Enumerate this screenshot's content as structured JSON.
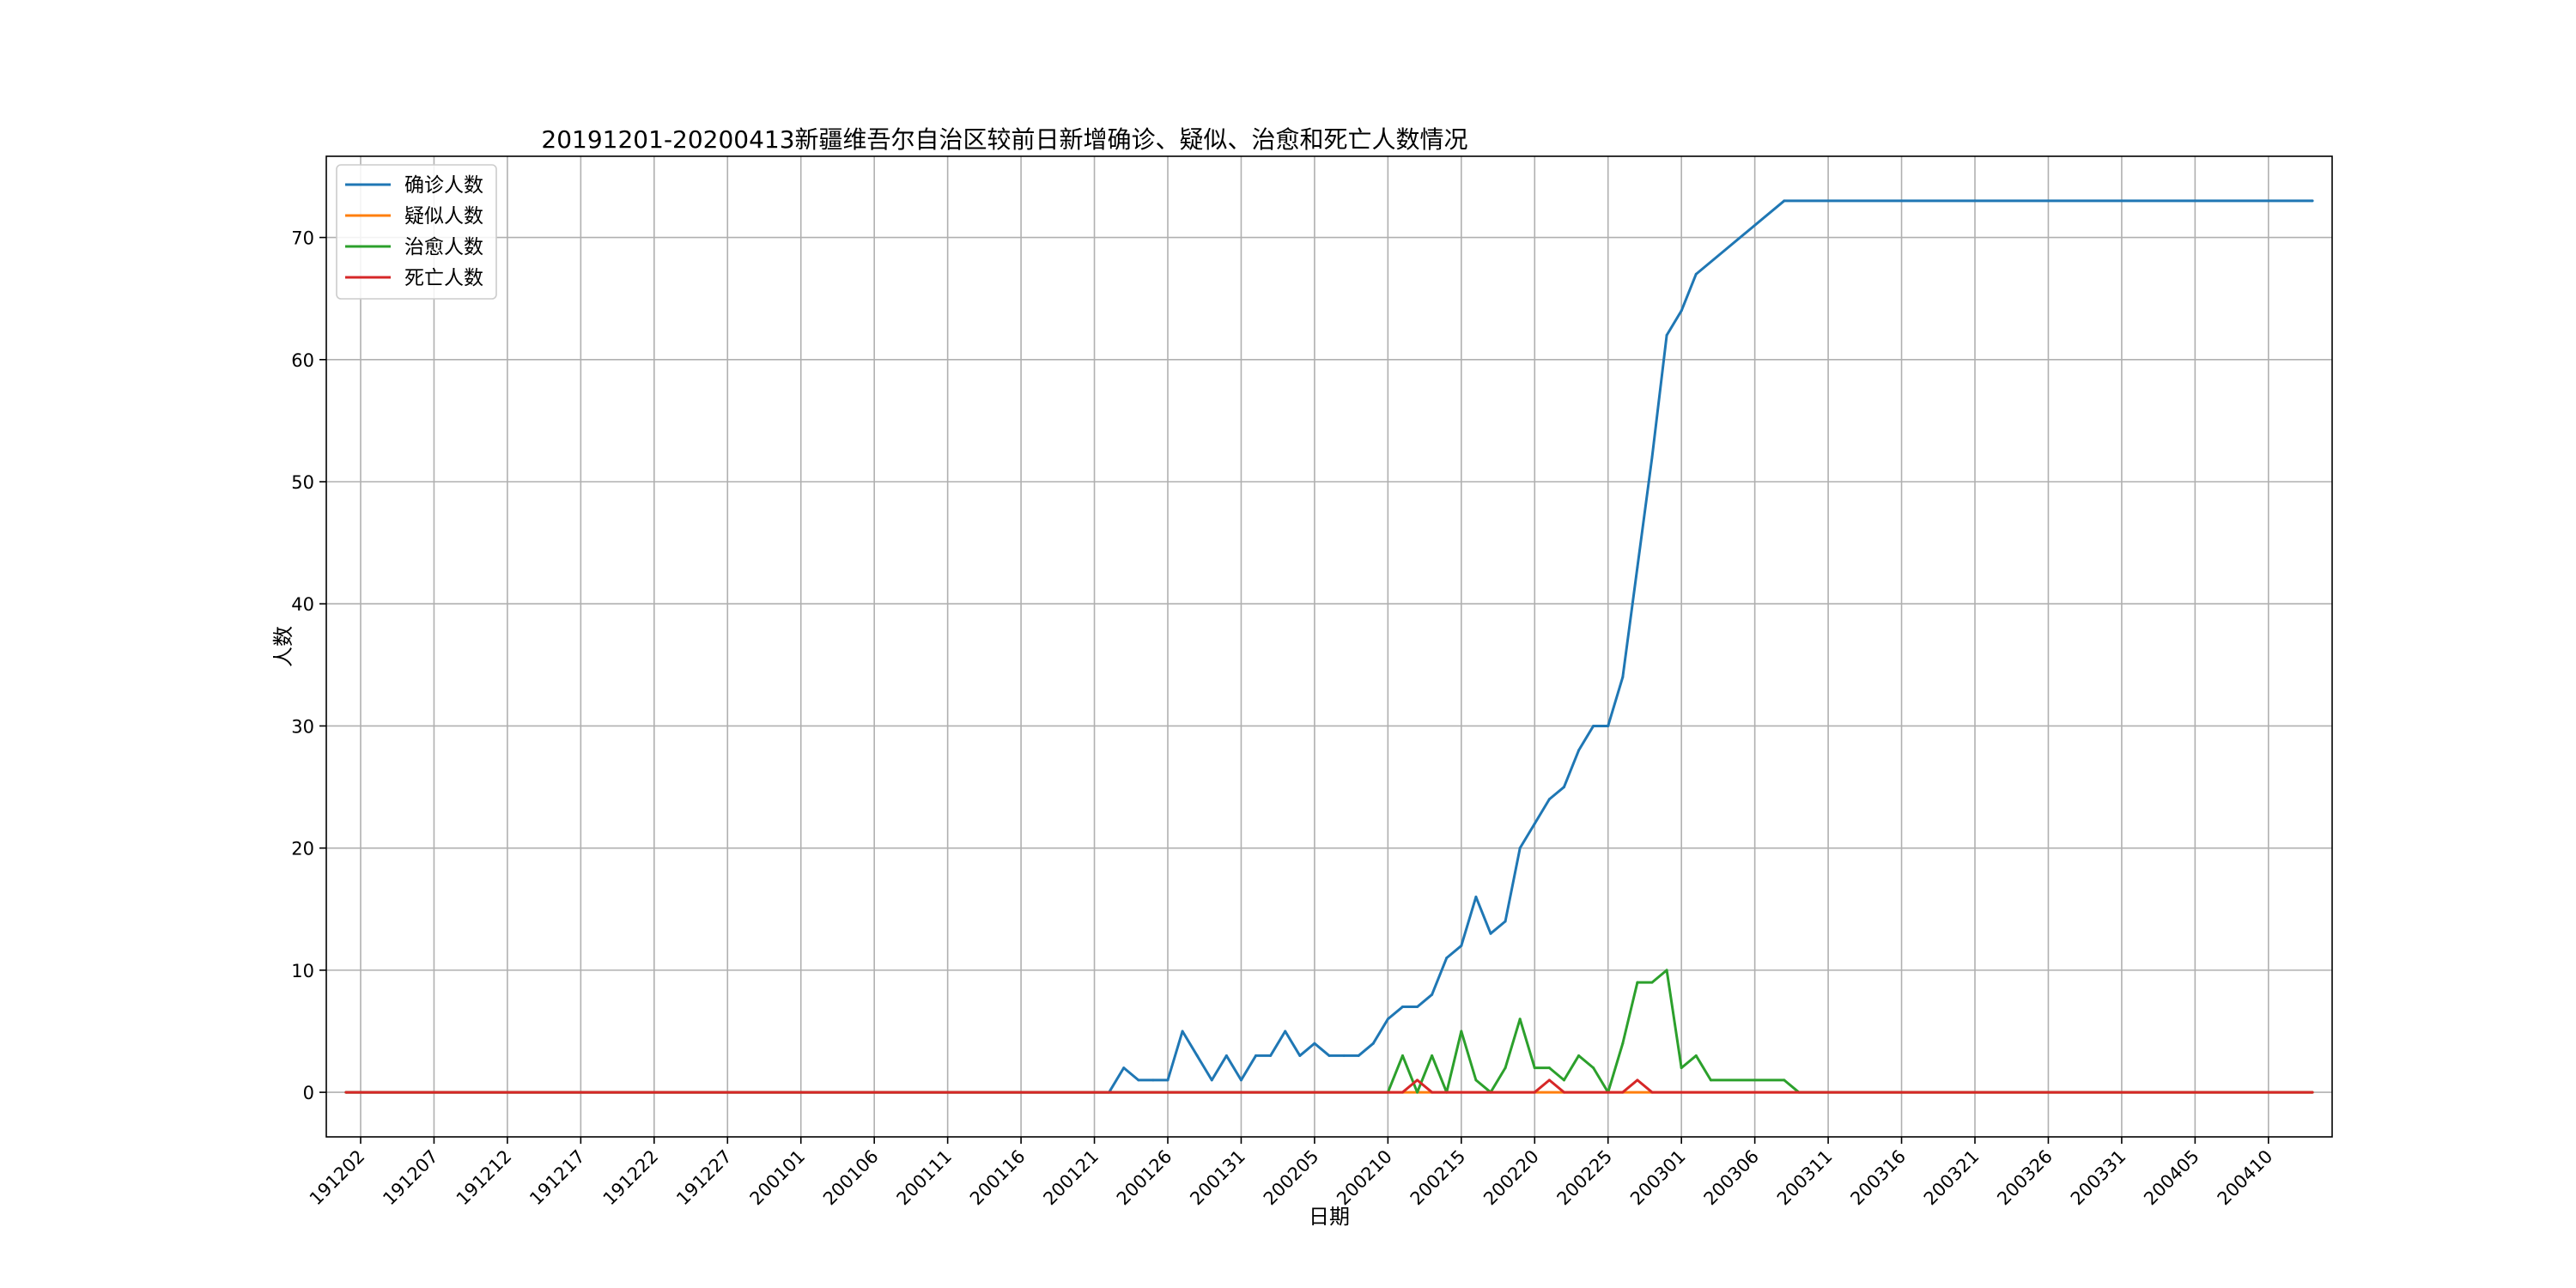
{
  "chart_data": {
    "type": "line",
    "title": "20191201-20200413新疆维吾尔自治区较前日新增确诊、疑似、治愈和死亡人数情况",
    "xlabel": "日期",
    "ylabel": "人数",
    "x_range": [
      "2019-12-01",
      "2020-04-13"
    ],
    "ylim": [
      -3.65,
      76.65
    ],
    "yticks": [
      0,
      10,
      20,
      30,
      40,
      50,
      60,
      70
    ],
    "xticks": [
      {
        "date": "2019-12-02",
        "label": "191202"
      },
      {
        "date": "2019-12-07",
        "label": "191207"
      },
      {
        "date": "2019-12-12",
        "label": "191212"
      },
      {
        "date": "2019-12-17",
        "label": "191217"
      },
      {
        "date": "2019-12-22",
        "label": "191222"
      },
      {
        "date": "2019-12-27",
        "label": "191227"
      },
      {
        "date": "2020-01-01",
        "label": "200101"
      },
      {
        "date": "2020-01-06",
        "label": "200106"
      },
      {
        "date": "2020-01-11",
        "label": "200111"
      },
      {
        "date": "2020-01-16",
        "label": "200116"
      },
      {
        "date": "2020-01-21",
        "label": "200121"
      },
      {
        "date": "2020-01-26",
        "label": "200126"
      },
      {
        "date": "2020-01-31",
        "label": "200131"
      },
      {
        "date": "2020-02-05",
        "label": "200205"
      },
      {
        "date": "2020-02-10",
        "label": "200210"
      },
      {
        "date": "2020-02-15",
        "label": "200215"
      },
      {
        "date": "2020-02-20",
        "label": "200220"
      },
      {
        "date": "2020-02-25",
        "label": "200225"
      },
      {
        "date": "2020-03-01",
        "label": "200301"
      },
      {
        "date": "2020-03-06",
        "label": "200306"
      },
      {
        "date": "2020-03-11",
        "label": "200311"
      },
      {
        "date": "2020-03-16",
        "label": "200316"
      },
      {
        "date": "2020-03-21",
        "label": "200321"
      },
      {
        "date": "2020-03-26",
        "label": "200326"
      },
      {
        "date": "2020-03-31",
        "label": "200331"
      },
      {
        "date": "2020-04-05",
        "label": "200405"
      },
      {
        "date": "2020-04-10",
        "label": "200410"
      }
    ],
    "grid": true,
    "legend_position": "top-left",
    "series": [
      {
        "name": "确诊人数",
        "color": "#1f77b4",
        "points": [
          [
            "2019-12-01",
            0
          ],
          [
            "2020-01-22",
            0
          ],
          [
            "2020-01-23",
            2
          ],
          [
            "2020-01-24",
            1
          ],
          [
            "2020-01-25",
            1
          ],
          [
            "2020-01-26",
            1
          ],
          [
            "2020-01-27",
            5
          ],
          [
            "2020-01-28",
            3
          ],
          [
            "2020-01-29",
            1
          ],
          [
            "2020-01-30",
            3
          ],
          [
            "2020-01-31",
            1
          ],
          [
            "2020-02-01",
            3
          ],
          [
            "2020-02-02",
            3
          ],
          [
            "2020-02-03",
            5
          ],
          [
            "2020-02-04",
            3
          ],
          [
            "2020-02-05",
            4
          ],
          [
            "2020-02-06",
            3
          ],
          [
            "2020-02-07",
            3
          ],
          [
            "2020-02-08",
            3
          ],
          [
            "2020-02-09",
            4
          ],
          [
            "2020-02-10",
            6
          ],
          [
            "2020-02-11",
            7
          ],
          [
            "2020-02-12",
            7
          ],
          [
            "2020-02-13",
            8
          ],
          [
            "2020-02-14",
            11
          ],
          [
            "2020-02-15",
            12
          ],
          [
            "2020-02-16",
            16
          ],
          [
            "2020-02-17",
            13
          ],
          [
            "2020-02-18",
            14
          ],
          [
            "2020-02-19",
            20
          ],
          [
            "2020-02-20",
            22
          ],
          [
            "2020-02-21",
            24
          ],
          [
            "2020-02-22",
            25
          ],
          [
            "2020-02-23",
            28
          ],
          [
            "2020-02-24",
            30
          ],
          [
            "2020-02-25",
            30
          ],
          [
            "2020-02-26",
            34
          ],
          [
            "2020-02-27",
            43
          ],
          [
            "2020-02-28",
            52
          ],
          [
            "2020-02-29",
            62
          ],
          [
            "2020-03-01",
            64
          ],
          [
            "2020-03-02",
            67
          ],
          [
            "2020-03-08",
            73
          ],
          [
            "2020-04-13",
            73
          ]
        ]
      },
      {
        "name": "疑似人数",
        "color": "#ff7f0e",
        "points": [
          [
            "2019-12-01",
            0
          ],
          [
            "2020-04-13",
            0
          ]
        ]
      },
      {
        "name": "治愈人数",
        "color": "#2ca02c",
        "points": [
          [
            "2019-12-01",
            0
          ],
          [
            "2020-02-10",
            0
          ],
          [
            "2020-02-11",
            3
          ],
          [
            "2020-02-12",
            0
          ],
          [
            "2020-02-13",
            3
          ],
          [
            "2020-02-14",
            0
          ],
          [
            "2020-02-15",
            5
          ],
          [
            "2020-02-16",
            1
          ],
          [
            "2020-02-17",
            0
          ],
          [
            "2020-02-18",
            2
          ],
          [
            "2020-02-19",
            6
          ],
          [
            "2020-02-20",
            2
          ],
          [
            "2020-02-21",
            2
          ],
          [
            "2020-02-22",
            1
          ],
          [
            "2020-02-23",
            3
          ],
          [
            "2020-02-24",
            2
          ],
          [
            "2020-02-25",
            0
          ],
          [
            "2020-02-26",
            4
          ],
          [
            "2020-02-27",
            9
          ],
          [
            "2020-02-28",
            9
          ],
          [
            "2020-02-29",
            10
          ],
          [
            "2020-03-01",
            2
          ],
          [
            "2020-03-02",
            3
          ],
          [
            "2020-03-03",
            1
          ],
          [
            "2020-03-08",
            1
          ],
          [
            "2020-03-09",
            0
          ],
          [
            "2020-04-13",
            0
          ]
        ]
      },
      {
        "name": "死亡人数",
        "color": "#d62728",
        "points": [
          [
            "2019-12-01",
            0
          ],
          [
            "2020-02-11",
            0
          ],
          [
            "2020-02-12",
            1
          ],
          [
            "2020-02-13",
            0
          ],
          [
            "2020-02-20",
            0
          ],
          [
            "2020-02-21",
            1
          ],
          [
            "2020-02-22",
            0
          ],
          [
            "2020-02-26",
            0
          ],
          [
            "2020-02-27",
            1
          ],
          [
            "2020-02-28",
            0
          ],
          [
            "2020-04-13",
            0
          ]
        ]
      }
    ]
  }
}
